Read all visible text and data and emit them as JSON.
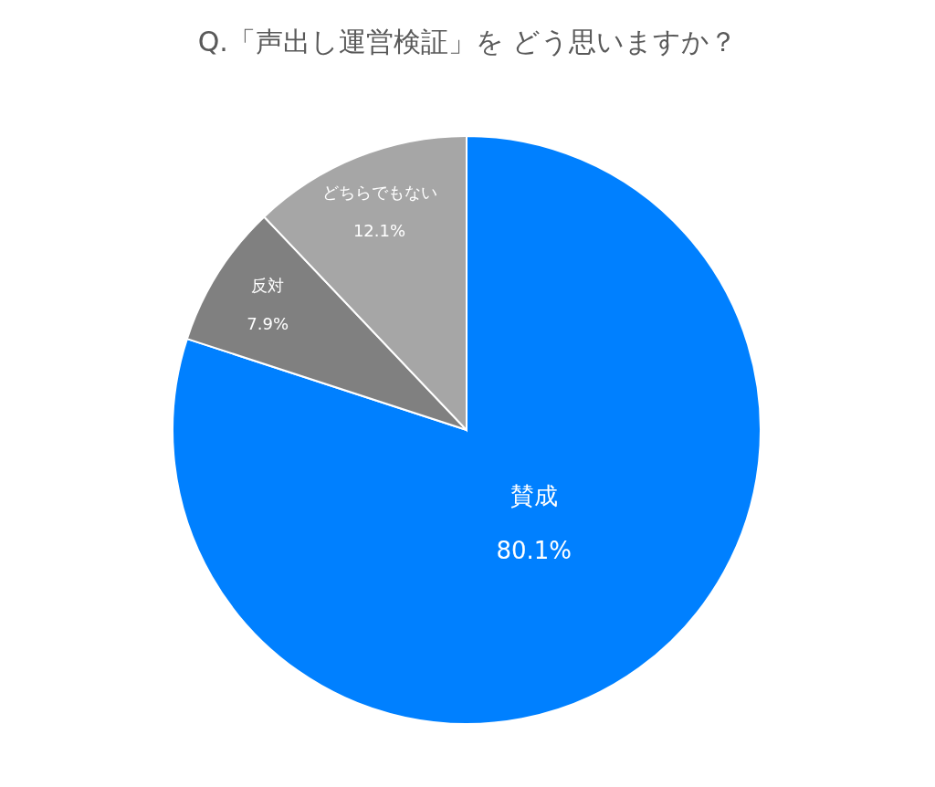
{
  "chart_data": {
    "type": "pie",
    "title": "Q.「声出し運営検証」を どう思いますか？",
    "categories": [
      "賛成",
      "反対",
      "どちらでもない"
    ],
    "values": [
      80.1,
      7.9,
      12.1
    ],
    "value_labels": [
      "80.1%",
      "7.9%",
      "12.1%"
    ],
    "colors": [
      "#0080ff",
      "#808080",
      "#a6a6a6"
    ]
  }
}
